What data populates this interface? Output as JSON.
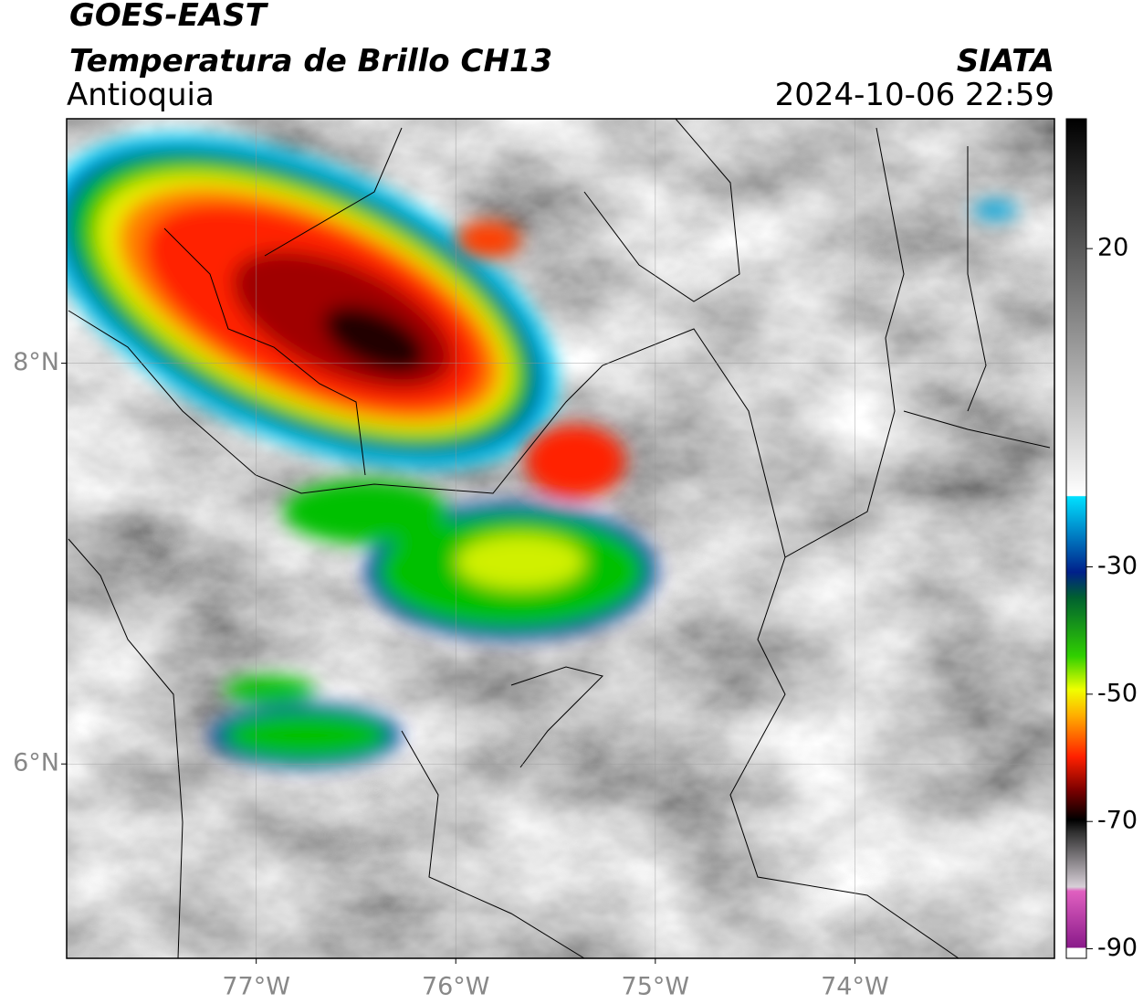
{
  "header": {
    "title": "GOES-EAST",
    "subtitle": "Temperatura de Brillo CH13",
    "region": "Antioquia",
    "source": "SIATA",
    "datetime": "2024-10-06 22:59"
  },
  "map": {
    "lon_range": [
      -77.95,
      -73.0
    ],
    "lat_range": [
      5.03,
      9.22
    ],
    "lon_ticks": [
      {
        "value": -77,
        "label": "77°W"
      },
      {
        "value": -76,
        "label": "76°W"
      },
      {
        "value": -75,
        "label": "75°W"
      },
      {
        "value": -74,
        "label": "74°W"
      }
    ],
    "lat_ticks": [
      {
        "value": 8,
        "label": "8°N"
      },
      {
        "value": 6,
        "label": "6°N"
      }
    ]
  },
  "colorbar": {
    "range": [
      -91.5,
      40.4
    ],
    "ticks": [
      20,
      -30,
      -50,
      -70,
      -90
    ]
  }
}
